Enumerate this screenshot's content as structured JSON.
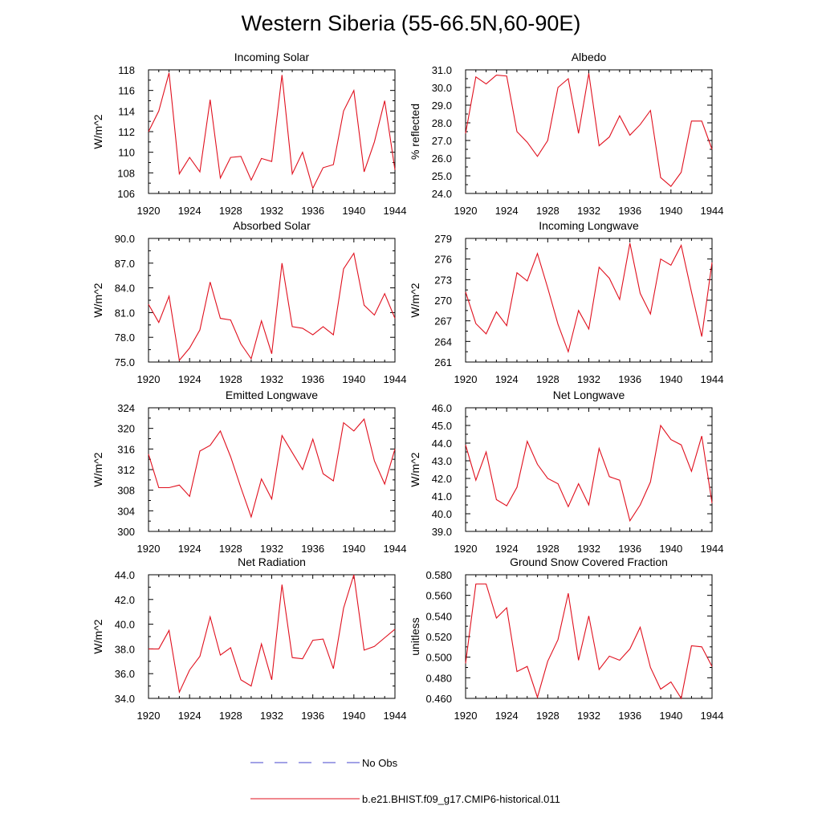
{
  "title": "Western Siberia (55-66.5N,60-90E)",
  "legend": {
    "placement": "bottom-center",
    "entries": [
      {
        "label": "No Obs",
        "color": "#4444cc",
        "style": "dashed"
      },
      {
        "label": "b.e21.BHIST.f09_g17.CMIP6-historical.011",
        "color": "#e0101e",
        "style": "solid"
      }
    ]
  },
  "chart_data": [
    {
      "type": "line",
      "title": "Incoming Solar",
      "ylabel": "W/m^2",
      "xlim": [
        1920,
        1944
      ],
      "ylim": [
        106,
        118
      ],
      "xticks": [
        "1920",
        "1924",
        "1928",
        "1932",
        "1936",
        "1940",
        "1944"
      ],
      "yticks": [
        "106",
        "108",
        "110",
        "112",
        "114",
        "116",
        "118"
      ],
      "x": [
        1920,
        1921,
        1922,
        1923,
        1924,
        1925,
        1926,
        1927,
        1928,
        1929,
        1930,
        1931,
        1932,
        1933,
        1934,
        1935,
        1936,
        1937,
        1938,
        1939,
        1940,
        1941,
        1942,
        1943,
        1944
      ],
      "series": [
        {
          "values": [
            112.0,
            114.0,
            117.7,
            107.9,
            109.5,
            108.1,
            115.1,
            107.5,
            109.5,
            109.6,
            107.3,
            109.4,
            109.1,
            117.5,
            107.9,
            110.0,
            106.5,
            108.5,
            108.8,
            114.0,
            116.0,
            108.1,
            111.0,
            115.0,
            108.3
          ]
        }
      ]
    },
    {
      "type": "line",
      "title": "Albedo",
      "ylabel": "% reflected",
      "xlim": [
        1920,
        1944
      ],
      "ylim": [
        24,
        31
      ],
      "xticks": [
        "1920",
        "1924",
        "1928",
        "1932",
        "1936",
        "1940",
        "1944"
      ],
      "yticks": [
        "24.0",
        "25.0",
        "26.0",
        "27.0",
        "28.0",
        "29.0",
        "30.0",
        "31.0"
      ],
      "x": [
        1920,
        1921,
        1922,
        1923,
        1924,
        1925,
        1926,
        1927,
        1928,
        1929,
        1930,
        1931,
        1932,
        1933,
        1934,
        1935,
        1936,
        1937,
        1938,
        1939,
        1940,
        1941,
        1942,
        1943,
        1944
      ],
      "series": [
        {
          "values": [
            27.4,
            30.6,
            30.2,
            30.7,
            30.65,
            27.5,
            26.9,
            26.1,
            27.0,
            30.0,
            30.5,
            27.4,
            30.8,
            26.7,
            27.2,
            28.4,
            27.3,
            27.9,
            28.7,
            24.9,
            24.4,
            25.2,
            28.1,
            28.1,
            26.5
          ]
        }
      ]
    },
    {
      "type": "line",
      "title": "Absorbed Solar",
      "ylabel": "W/m^2",
      "xlim": [
        1920,
        1944
      ],
      "ylim": [
        75,
        90
      ],
      "xticks": [
        "1920",
        "1924",
        "1928",
        "1932",
        "1936",
        "1940",
        "1944"
      ],
      "yticks": [
        "75.0",
        "78.0",
        "81.0",
        "84.0",
        "87.0",
        "90.0"
      ],
      "x": [
        1920,
        1921,
        1922,
        1923,
        1924,
        1925,
        1926,
        1927,
        1928,
        1929,
        1930,
        1931,
        1932,
        1933,
        1934,
        1935,
        1936,
        1937,
        1938,
        1939,
        1940,
        1941,
        1942,
        1943,
        1944
      ],
      "series": [
        {
          "values": [
            82.0,
            79.8,
            83.0,
            75.2,
            76.7,
            78.9,
            84.7,
            80.3,
            80.1,
            77.2,
            75.4,
            80.0,
            76.0,
            87.0,
            79.3,
            79.1,
            78.3,
            79.3,
            78.3,
            86.3,
            88.2,
            81.9,
            80.7,
            83.3,
            80.3
          ]
        }
      ]
    },
    {
      "type": "line",
      "title": "Incoming Longwave",
      "ylabel": "W/m^2",
      "xlim": [
        1920,
        1944
      ],
      "ylim": [
        261,
        279
      ],
      "xticks": [
        "1920",
        "1924",
        "1928",
        "1932",
        "1936",
        "1940",
        "1944"
      ],
      "yticks": [
        "261",
        "264",
        "267",
        "270",
        "273",
        "276",
        "279"
      ],
      "x": [
        1920,
        1921,
        1922,
        1923,
        1924,
        1925,
        1926,
        1927,
        1928,
        1929,
        1930,
        1931,
        1932,
        1933,
        1934,
        1935,
        1936,
        1937,
        1938,
        1939,
        1940,
        1941,
        1942,
        1943,
        1944
      ],
      "series": [
        {
          "values": [
            271.2,
            266.6,
            265.1,
            268.3,
            266.3,
            274.0,
            272.8,
            276.8,
            271.8,
            266.5,
            262.5,
            268.5,
            265.8,
            274.8,
            273.2,
            270.1,
            278.3,
            271.0,
            268.0,
            276.0,
            275.1,
            278.0,
            271.2,
            264.7,
            275.5
          ]
        }
      ]
    },
    {
      "type": "line",
      "title": "Emitted Longwave",
      "ylabel": "W/m^2",
      "xlim": [
        1920,
        1944
      ],
      "ylim": [
        300,
        324
      ],
      "xticks": [
        "1920",
        "1924",
        "1928",
        "1932",
        "1936",
        "1940",
        "1944"
      ],
      "yticks": [
        "300",
        "304",
        "308",
        "312",
        "316",
        "320",
        "324"
      ],
      "x": [
        1920,
        1921,
        1922,
        1923,
        1924,
        1925,
        1926,
        1927,
        1928,
        1929,
        1930,
        1931,
        1932,
        1933,
        1934,
        1935,
        1936,
        1937,
        1938,
        1939,
        1940,
        1941,
        1942,
        1943,
        1944
      ],
      "series": [
        {
          "values": [
            315.0,
            308.5,
            308.5,
            309.0,
            306.8,
            315.6,
            316.7,
            319.5,
            314.5,
            308.5,
            302.8,
            310.2,
            306.3,
            318.6,
            315.3,
            312.0,
            317.9,
            311.2,
            309.8,
            321.1,
            319.5,
            321.8,
            313.7,
            309.2,
            316.0
          ]
        }
      ]
    },
    {
      "type": "line",
      "title": "Net Longwave",
      "ylabel": "W/m^2",
      "xlim": [
        1920,
        1944
      ],
      "ylim": [
        39,
        46
      ],
      "xticks": [
        "1920",
        "1924",
        "1928",
        "1932",
        "1936",
        "1940",
        "1944"
      ],
      "yticks": [
        "39.0",
        "40.0",
        "41.0",
        "42.0",
        "43.0",
        "44.0",
        "45.0",
        "46.0"
      ],
      "x": [
        1920,
        1921,
        1922,
        1923,
        1924,
        1925,
        1926,
        1927,
        1928,
        1929,
        1930,
        1931,
        1932,
        1933,
        1934,
        1935,
        1936,
        1937,
        1938,
        1939,
        1940,
        1941,
        1942,
        1943,
        1944
      ],
      "series": [
        {
          "values": [
            43.9,
            41.9,
            43.5,
            40.8,
            40.45,
            41.5,
            44.1,
            42.8,
            42.0,
            41.7,
            40.4,
            41.7,
            40.5,
            43.7,
            42.1,
            41.9,
            39.6,
            40.5,
            41.8,
            45.0,
            44.2,
            43.9,
            42.4,
            44.4,
            40.6
          ]
        }
      ]
    },
    {
      "type": "line",
      "title": "Net Radiation",
      "ylabel": "W/m^2",
      "xlim": [
        1920,
        1944
      ],
      "ylim": [
        34,
        44
      ],
      "xticks": [
        "1920",
        "1924",
        "1928",
        "1932",
        "1936",
        "1940",
        "1944"
      ],
      "yticks": [
        "34.0",
        "36.0",
        "38.0",
        "40.0",
        "42.0",
        "44.0"
      ],
      "x": [
        1920,
        1921,
        1922,
        1923,
        1924,
        1925,
        1926,
        1927,
        1928,
        1929,
        1930,
        1931,
        1932,
        1933,
        1934,
        1935,
        1936,
        1937,
        1938,
        1939,
        1940,
        1941,
        1942,
        1943,
        1944
      ],
      "series": [
        {
          "values": [
            38.0,
            38.0,
            39.5,
            34.5,
            36.3,
            37.4,
            40.6,
            37.5,
            38.1,
            35.5,
            35.0,
            38.4,
            35.5,
            43.2,
            37.3,
            37.2,
            38.7,
            38.8,
            36.4,
            41.3,
            44.0,
            37.9,
            38.2,
            38.9,
            39.6
          ]
        }
      ]
    },
    {
      "type": "line",
      "title": "Ground Snow Covered Fraction",
      "ylabel": "unitless",
      "xlim": [
        1920,
        1944
      ],
      "ylim": [
        0.46,
        0.58
      ],
      "xticks": [
        "1920",
        "1924",
        "1928",
        "1932",
        "1936",
        "1940",
        "1944"
      ],
      "yticks": [
        "0.460",
        "0.480",
        "0.500",
        "0.520",
        "0.540",
        "0.560",
        "0.580"
      ],
      "x": [
        1920,
        1921,
        1922,
        1923,
        1924,
        1925,
        1926,
        1927,
        1928,
        1929,
        1930,
        1931,
        1932,
        1933,
        1934,
        1935,
        1936,
        1937,
        1938,
        1939,
        1940,
        1941,
        1942,
        1943,
        1944
      ],
      "series": [
        {
          "values": [
            0.494,
            0.571,
            0.571,
            0.538,
            0.548,
            0.486,
            0.491,
            0.461,
            0.496,
            0.517,
            0.562,
            0.497,
            0.54,
            0.488,
            0.501,
            0.497,
            0.508,
            0.529,
            0.49,
            0.469,
            0.476,
            0.46,
            0.511,
            0.51,
            0.491
          ]
        }
      ]
    }
  ]
}
